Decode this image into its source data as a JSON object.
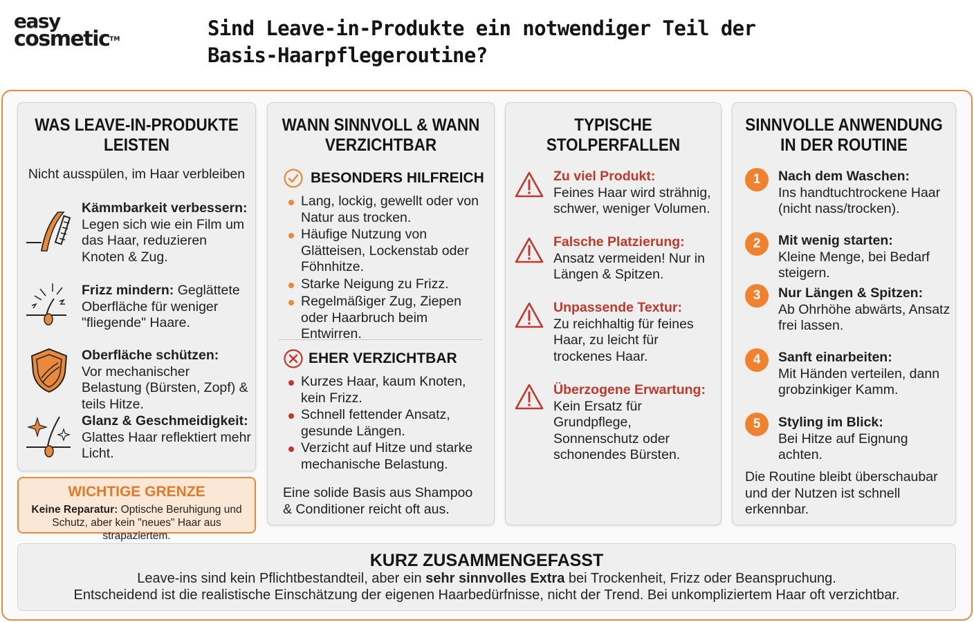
{
  "brand": {
    "line1": "easy",
    "line2": "cosmetic",
    "tm": "TM"
  },
  "title": "Sind Leave-in-Produkte ein notwendiger Teil der Basis-Haarpflegeroutine?",
  "colors": {
    "accent": "#e8893c",
    "warning_red": "#c0392b",
    "panel": "#efefef"
  },
  "col1": {
    "title": "WAS LEAVE-IN-PRODUKTE LEISTEN",
    "subtitle": "Nicht ausspülen, im Haar verbleiben",
    "items": [
      {
        "icon": "comb-hair-icon",
        "head": "Kämmbarkeit verbessern:",
        "text": "Legen sich wie ein Film um das Haar, reduzieren Knoten & Zug."
      },
      {
        "icon": "frizz-hair-icon",
        "head": "Frizz mindern:",
        "text": "Geglättete Oberfläche für weniger \"fliegende\" Haare."
      },
      {
        "icon": "shield-icon",
        "head": "Oberfläche schützen:",
        "text": "Vor mechanischer Belastung (Bürsten, Zopf) & teils Hitze."
      },
      {
        "icon": "sparkle-hair-icon",
        "head": "Glanz & Geschmeidigkeit:",
        "text": "Glattes Haar reflektiert mehr Licht."
      }
    ]
  },
  "limit": {
    "title": "WICHTIGE GRENZE",
    "bold": "Keine Reparatur:",
    "text": "Optische Beruhigung und Schutz, aber kein \"neues\" Haar aus strapaziertem."
  },
  "col2": {
    "title": "WANN SINNVOLL & WANN VERZICHTBAR",
    "helpful": {
      "icon": "check-circle-icon",
      "label": "BESONDERS HILFREICH",
      "items": [
        "Lang, lockig, gewellt oder von Natur aus trocken.",
        "Häufige Nutzung von Glätteisen, Lockenstab oder Föhnhitze.",
        "Starke Neigung zu Frizz.",
        "Regelmäßiger Zug, Ziepen oder Haarbruch beim Entwirren."
      ]
    },
    "dispensable": {
      "icon": "x-circle-icon",
      "label": "EHER VERZICHTBAR",
      "items": [
        "Kurzes Haar, kaum Knoten, kein Frizz.",
        "Schnell fettender Ansatz, gesunde Längen.",
        "Verzicht auf Hitze und starke mechanische Belastung."
      ]
    },
    "footer": "Eine solide Basis aus Shampoo & Conditioner reicht oft aus."
  },
  "col3": {
    "title": "TYPISCHE STOLPERFALLEN",
    "items": [
      {
        "icon": "warning-icon",
        "head": "Zu viel Produkt:",
        "text": "Feines Haar wird strähnig, schwer, weniger Volumen."
      },
      {
        "icon": "warning-icon",
        "head": "Falsche Platzierung:",
        "text": "Ansatz vermeiden! Nur in Längen & Spitzen."
      },
      {
        "icon": "warning-icon",
        "head": "Unpassende Textur:",
        "text": "Zu reichhaltig für feines Haar, zu leicht für trockenes Haar."
      },
      {
        "icon": "warning-icon",
        "head": "Überzogene Erwartung:",
        "text": "Kein Ersatz für Grundpflege, Sonnenschutz oder schonendes Bürsten."
      }
    ]
  },
  "col4": {
    "title": "SINNVOLLE ANWENDUNG IN DER ROUTINE",
    "steps": [
      {
        "num": "1",
        "head": "Nach dem Waschen:",
        "text": "Ins handtuchtrockene Haar (nicht nass/trocken)."
      },
      {
        "num": "2",
        "head": "Mit wenig starten:",
        "text": "Kleine Menge, bei Bedarf steigern."
      },
      {
        "num": "3",
        "head": "Nur Längen & Spitzen:",
        "text": "Ab Ohrhöhe abwärts, Ansatz frei lassen."
      },
      {
        "num": "4",
        "head": "Sanft einarbeiten:",
        "text": "Mit Händen verteilen, dann grobzinkiger Kamm."
      },
      {
        "num": "5",
        "head": "Styling im Blick:",
        "text": "Bei Hitze auf Eignung achten."
      }
    ],
    "footer": "Die Routine bleibt überschaubar und der Nutzen ist schnell erkennbar."
  },
  "summary": {
    "title": "KURZ ZUSAMMENGEFASST",
    "line1_pre": "Leave-ins sind kein Pflichtbestandteil, aber ein",
    "line1_bold": "sehr sinnvolles Extra",
    "line1_post": "bei Trockenheit, Frizz oder Beanspruchung.",
    "line2": "Entscheidend ist die realistische Einschätzung der eigenen Haarbedürfnisse, nicht der Trend. Bei unkompliziertem Haar oft verzichtbar."
  }
}
